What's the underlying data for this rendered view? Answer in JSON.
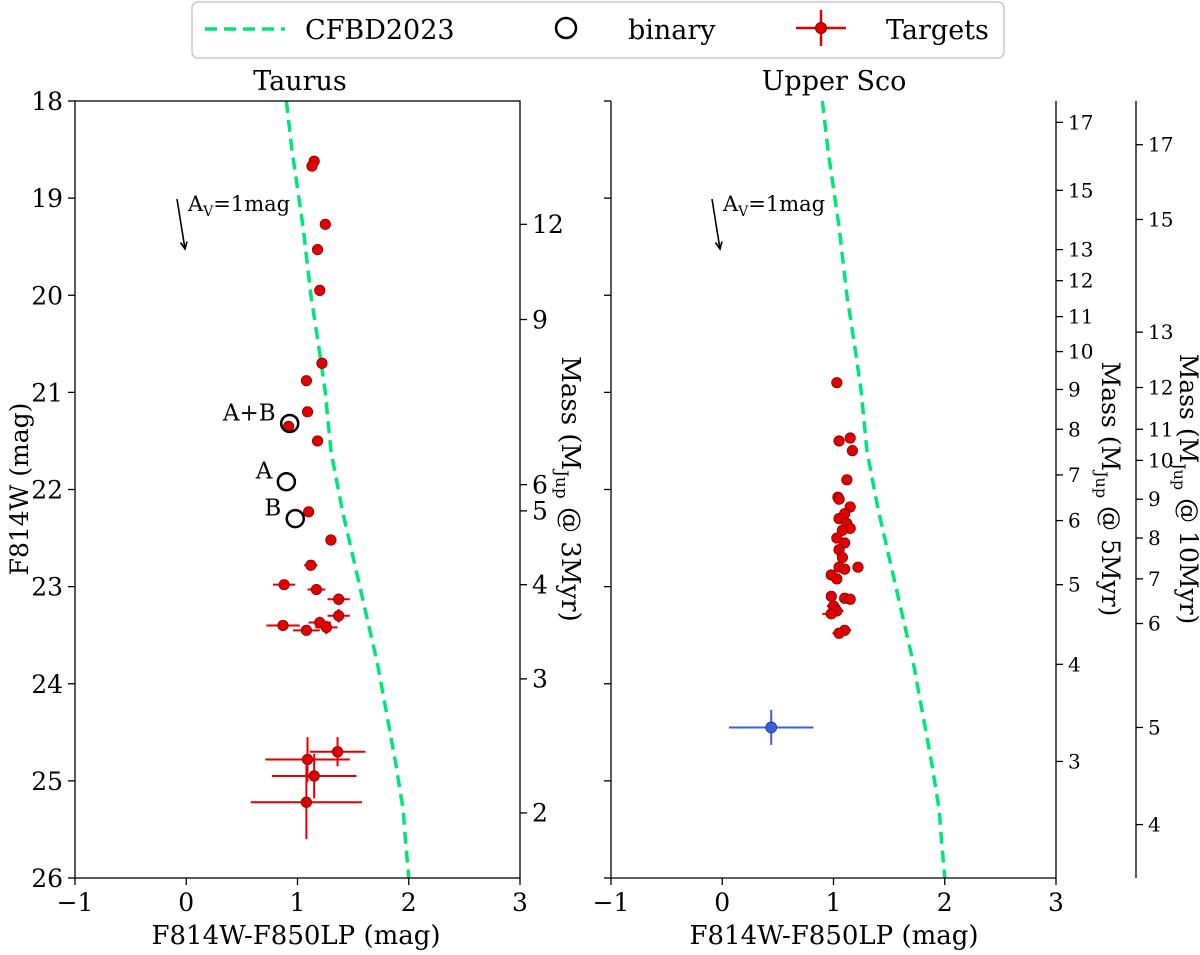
{
  "chart_data": {
    "type": "scatter",
    "legend": {
      "placement": "top",
      "entries": [
        {
          "label": "CFBD2023",
          "style": "dashed-line",
          "color": "#00e676"
        },
        {
          "label": "binary",
          "style": "open-circle",
          "color": "#000000"
        },
        {
          "label": "Targets",
          "style": "errorbar-point",
          "color": "#e00000"
        }
      ]
    },
    "colors": {
      "target": "#e00000",
      "model": "#00e676",
      "binary": "#000000",
      "outlier": "#3b5fd9"
    },
    "panels": [
      {
        "title": "Taurus",
        "xlabel": "F814W-F850LP (mag)",
        "ylabel": "F814W (mag)",
        "xlim": [
          -1,
          3
        ],
        "ylim": [
          26,
          18
        ],
        "xticks": [
          "−1",
          "0",
          "1",
          "2",
          "3"
        ],
        "yticks": [
          "18",
          "19",
          "20",
          "21",
          "22",
          "23",
          "24",
          "25",
          "26"
        ],
        "reddening": {
          "label": "A",
          "sub": "V",
          "suffix": "=1mag"
        },
        "model_curve": [
          [
            0.9,
            18
          ],
          [
            0.95,
            18.5
          ],
          [
            1.05,
            19.3
          ],
          [
            1.12,
            20
          ],
          [
            1.2,
            20.6
          ],
          [
            1.25,
            21
          ],
          [
            1.3,
            21.6
          ],
          [
            1.4,
            22.2
          ],
          [
            1.52,
            22.8
          ],
          [
            1.62,
            23.3
          ],
          [
            1.72,
            23.8
          ],
          [
            1.8,
            24.3
          ],
          [
            1.88,
            24.8
          ],
          [
            1.95,
            25.3
          ],
          [
            1.97,
            25.6
          ],
          [
            2.0,
            26
          ]
        ],
        "targets": [
          {
            "x": 1.15,
            "y": 18.62,
            "xerr": 0,
            "yerr": 0
          },
          {
            "x": 1.13,
            "y": 18.67,
            "xerr": 0,
            "yerr": 0
          },
          {
            "x": 1.25,
            "y": 19.27,
            "xerr": 0,
            "yerr": 0
          },
          {
            "x": 1.18,
            "y": 19.53,
            "xerr": 0,
            "yerr": 0
          },
          {
            "x": 1.2,
            "y": 19.95,
            "xerr": 0,
            "yerr": 0
          },
          {
            "x": 1.22,
            "y": 20.7,
            "xerr": 0,
            "yerr": 0
          },
          {
            "x": 1.08,
            "y": 20.88,
            "xerr": 0,
            "yerr": 0
          },
          {
            "x": 1.09,
            "y": 21.2,
            "xerr": 0,
            "yerr": 0
          },
          {
            "x": 0.92,
            "y": 21.35,
            "xerr": 0,
            "yerr": 0
          },
          {
            "x": 1.18,
            "y": 21.5,
            "xerr": 0,
            "yerr": 0
          },
          {
            "x": 1.1,
            "y": 22.23,
            "xerr": 0,
            "yerr": 0
          },
          {
            "x": 1.3,
            "y": 22.52,
            "xerr": 0,
            "yerr": 0
          },
          {
            "x": 1.12,
            "y": 22.78,
            "xerr": 0.06,
            "yerr": 0
          },
          {
            "x": 0.88,
            "y": 22.98,
            "xerr": 0.1,
            "yerr": 0
          },
          {
            "x": 1.17,
            "y": 23.03,
            "xerr": 0.08,
            "yerr": 0
          },
          {
            "x": 1.37,
            "y": 23.13,
            "xerr": 0.1,
            "yerr": 0.06
          },
          {
            "x": 1.37,
            "y": 23.3,
            "xerr": 0.1,
            "yerr": 0.07
          },
          {
            "x": 1.2,
            "y": 23.37,
            "xerr": 0.1,
            "yerr": 0.06
          },
          {
            "x": 1.26,
            "y": 23.42,
            "xerr": 0.1,
            "yerr": 0.07
          },
          {
            "x": 0.87,
            "y": 23.4,
            "xerr": 0.15,
            "yerr": 0.05
          },
          {
            "x": 1.08,
            "y": 23.45,
            "xerr": 0.12,
            "yerr": 0.05
          },
          {
            "x": 1.36,
            "y": 24.7,
            "xerr": 0.25,
            "yerr": 0.15
          },
          {
            "x": 1.09,
            "y": 24.78,
            "xerr": 0.38,
            "yerr": 0.23
          },
          {
            "x": 1.15,
            "y": 24.95,
            "xerr": 0.38,
            "yerr": 0.23
          },
          {
            "x": 1.08,
            "y": 25.22,
            "xerr": 0.5,
            "yerr": 0.38
          }
        ],
        "binaries": [
          {
            "x": 0.93,
            "y": 21.32,
            "label": "A+B"
          },
          {
            "x": 0.9,
            "y": 21.92,
            "label": "A"
          },
          {
            "x": 0.98,
            "y": 22.3,
            "label": "B"
          }
        ],
        "mass_axes": [
          {
            "label": "Mass (M",
            "sub": "Jup",
            "suffix": " @ 3Myr)",
            "ticks": [
              {
                "y": 19.27,
                "label": "12"
              },
              {
                "y": 20.25,
                "label": "9"
              },
              {
                "y": 21.95,
                "label": "6"
              },
              {
                "y": 22.22,
                "label": "5"
              },
              {
                "y": 22.98,
                "label": "4"
              },
              {
                "y": 23.95,
                "label": "3"
              },
              {
                "y": 25.33,
                "label": "2"
              }
            ]
          }
        ]
      },
      {
        "title": "Upper Sco",
        "xlabel": "F814W-F850LP (mag)",
        "ylabel": "",
        "xlim": [
          -1,
          3
        ],
        "ylim": [
          26,
          18
        ],
        "xticks": [
          "−1",
          "0",
          "1",
          "2",
          "3"
        ],
        "reddening": {
          "label": "A",
          "sub": "V",
          "suffix": "=1mag"
        },
        "model_curve": [
          [
            0.9,
            18
          ],
          [
            0.95,
            18.5
          ],
          [
            1.05,
            19.3
          ],
          [
            1.12,
            20
          ],
          [
            1.2,
            20.6
          ],
          [
            1.25,
            21
          ],
          [
            1.3,
            21.6
          ],
          [
            1.4,
            22.2
          ],
          [
            1.52,
            22.8
          ],
          [
            1.62,
            23.3
          ],
          [
            1.72,
            23.8
          ],
          [
            1.8,
            24.3
          ],
          [
            1.88,
            24.8
          ],
          [
            1.95,
            25.3
          ],
          [
            1.97,
            25.6
          ],
          [
            2.0,
            26
          ]
        ],
        "targets": [
          {
            "x": 1.03,
            "y": 20.9,
            "xerr": 0,
            "yerr": 0
          },
          {
            "x": 1.05,
            "y": 21.5,
            "xerr": 0,
            "yerr": 0
          },
          {
            "x": 1.15,
            "y": 21.47,
            "xerr": 0,
            "yerr": 0
          },
          {
            "x": 1.17,
            "y": 21.6,
            "xerr": 0,
            "yerr": 0
          },
          {
            "x": 1.12,
            "y": 21.9,
            "xerr": 0,
            "yerr": 0
          },
          {
            "x": 1.04,
            "y": 22.08,
            "xerr": 0,
            "yerr": 0
          },
          {
            "x": 1.05,
            "y": 22.1,
            "xerr": 0,
            "yerr": 0
          },
          {
            "x": 1.15,
            "y": 22.18,
            "xerr": 0,
            "yerr": 0
          },
          {
            "x": 1.1,
            "y": 22.25,
            "xerr": 0,
            "yerr": 0
          },
          {
            "x": 1.05,
            "y": 22.3,
            "xerr": 0,
            "yerr": 0
          },
          {
            "x": 1.12,
            "y": 22.35,
            "xerr": 0,
            "yerr": 0
          },
          {
            "x": 1.15,
            "y": 22.4,
            "xerr": 0,
            "yerr": 0
          },
          {
            "x": 1.08,
            "y": 22.42,
            "xerr": 0,
            "yerr": 0
          },
          {
            "x": 1.03,
            "y": 22.5,
            "xerr": 0,
            "yerr": 0
          },
          {
            "x": 1.1,
            "y": 22.55,
            "xerr": 0,
            "yerr": 0
          },
          {
            "x": 1.05,
            "y": 22.62,
            "xerr": 0,
            "yerr": 0
          },
          {
            "x": 1.08,
            "y": 22.7,
            "xerr": 0,
            "yerr": 0
          },
          {
            "x": 1.05,
            "y": 22.8,
            "xerr": 0,
            "yerr": 0
          },
          {
            "x": 1.1,
            "y": 22.82,
            "xerr": 0,
            "yerr": 0
          },
          {
            "x": 1.22,
            "y": 22.8,
            "xerr": 0,
            "yerr": 0
          },
          {
            "x": 0.98,
            "y": 22.88,
            "xerr": 0,
            "yerr": 0
          },
          {
            "x": 1.03,
            "y": 22.92,
            "xerr": 0,
            "yerr": 0
          },
          {
            "x": 1.1,
            "y": 23.12,
            "xerr": 0,
            "yerr": 0
          },
          {
            "x": 0.98,
            "y": 23.1,
            "xerr": 0,
            "yerr": 0
          },
          {
            "x": 1.15,
            "y": 23.13,
            "xerr": 0,
            "yerr": 0
          },
          {
            "x": 1.0,
            "y": 23.2,
            "xerr": 0.06,
            "yerr": 0
          },
          {
            "x": 1.03,
            "y": 23.25,
            "xerr": 0.06,
            "yerr": 0
          },
          {
            "x": 0.98,
            "y": 23.28,
            "xerr": 0.08,
            "yerr": 0
          },
          {
            "x": 1.1,
            "y": 23.45,
            "xerr": 0.06,
            "yerr": 0
          },
          {
            "x": 1.05,
            "y": 23.48,
            "xerr": 0.06,
            "yerr": 0
          }
        ],
        "outlier": {
          "x": 0.44,
          "y": 24.45,
          "xerr": 0.38,
          "yerr": 0.18
        },
        "mass_axes": [
          {
            "label": "Mass (M",
            "sub": "Jup",
            "suffix": " @ 5Myr)",
            "ticks": [
              {
                "y": 18.22,
                "label": "17"
              },
              {
                "y": 18.92,
                "label": "15"
              },
              {
                "y": 19.53,
                "label": "13"
              },
              {
                "y": 19.85,
                "label": "12"
              },
              {
                "y": 20.22,
                "label": "11"
              },
              {
                "y": 20.58,
                "label": "10"
              },
              {
                "y": 20.97,
                "label": "9"
              },
              {
                "y": 21.38,
                "label": "8"
              },
              {
                "y": 21.85,
                "label": "7"
              },
              {
                "y": 22.32,
                "label": "6"
              },
              {
                "y": 22.98,
                "label": "5"
              },
              {
                "y": 23.8,
                "label": "4"
              },
              {
                "y": 24.8,
                "label": "3"
              }
            ]
          },
          {
            "label": "Mass (M",
            "sub": "Jup",
            "suffix": " @ 10Myr)",
            "ticks": [
              {
                "y": 18.45,
                "label": "17"
              },
              {
                "y": 19.22,
                "label": "15"
              },
              {
                "y": 20.38,
                "label": "13"
              },
              {
                "y": 20.95,
                "label": "12"
              },
              {
                "y": 21.38,
                "label": "11"
              },
              {
                "y": 21.7,
                "label": "10"
              },
              {
                "y": 22.1,
                "label": "9"
              },
              {
                "y": 22.5,
                "label": "8"
              },
              {
                "y": 22.92,
                "label": "7"
              },
              {
                "y": 23.38,
                "label": "6"
              },
              {
                "y": 24.45,
                "label": "5"
              },
              {
                "y": 25.45,
                "label": "4"
              }
            ]
          }
        ]
      }
    ]
  }
}
